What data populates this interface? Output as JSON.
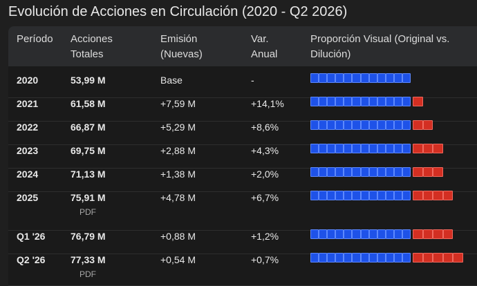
{
  "title": "Evolución de Acciones en Circulación (2020 - Q2 2026)",
  "colors": {
    "original": "#1e52e8",
    "dilution": "#d32f22",
    "background": "#1f1f1f",
    "header_bg": "#2b2c2e"
  },
  "table": {
    "headers": [
      "Período",
      "Acciones Totales",
      "Emisión (Nuevas)",
      "Var. Anual",
      "Proporción Visual (Original vs. Dilución)"
    ],
    "headers_display": [
      [
        "Período"
      ],
      [
        "Acciones",
        "Totales"
      ],
      [
        "Emisión",
        "(Nuevas)"
      ],
      [
        "Var.",
        "Anual"
      ],
      [
        "Proporción Visual (Original vs.",
        "Dilución)"
      ]
    ],
    "rows": [
      {
        "period": "2020",
        "total": "53,99 M",
        "emission": "Base",
        "change": "-",
        "blue_segments": 12,
        "red_segments": 0
      },
      {
        "period": "2021",
        "total": "61,58 M",
        "emission": "+7,59 M",
        "change": "+14,1%",
        "blue_segments": 12,
        "red_segments": 1
      },
      {
        "period": "2022",
        "total": "66,87 M",
        "emission": "+5,29 M",
        "change": "+8,6%",
        "blue_segments": 12,
        "red_segments": 2
      },
      {
        "period": "2023",
        "total": "69,75 M",
        "emission": "+2,88 M",
        "change": "+4,3%",
        "blue_segments": 12,
        "red_segments": 3
      },
      {
        "period": "2024",
        "total": "71,13 M",
        "emission": "+1,38 M",
        "change": "+2,0%",
        "blue_segments": 12,
        "red_segments": 3
      },
      {
        "period": "2025",
        "total": "75,91 M",
        "emission": "+4,78 M",
        "change": "+6,7%",
        "blue_segments": 12,
        "red_segments": 4,
        "source": "PDF"
      },
      {
        "period": "Q1 '26",
        "total": "76,79 M",
        "emission": "+0,88 M",
        "change": "+1,2%",
        "blue_segments": 12,
        "red_segments": 4
      },
      {
        "period": "Q2 '26",
        "total": "77,33 M",
        "emission": "+0,54 M",
        "change": "+0,7%",
        "blue_segments": 12,
        "red_segments": 5,
        "source": "PDF"
      }
    ]
  }
}
